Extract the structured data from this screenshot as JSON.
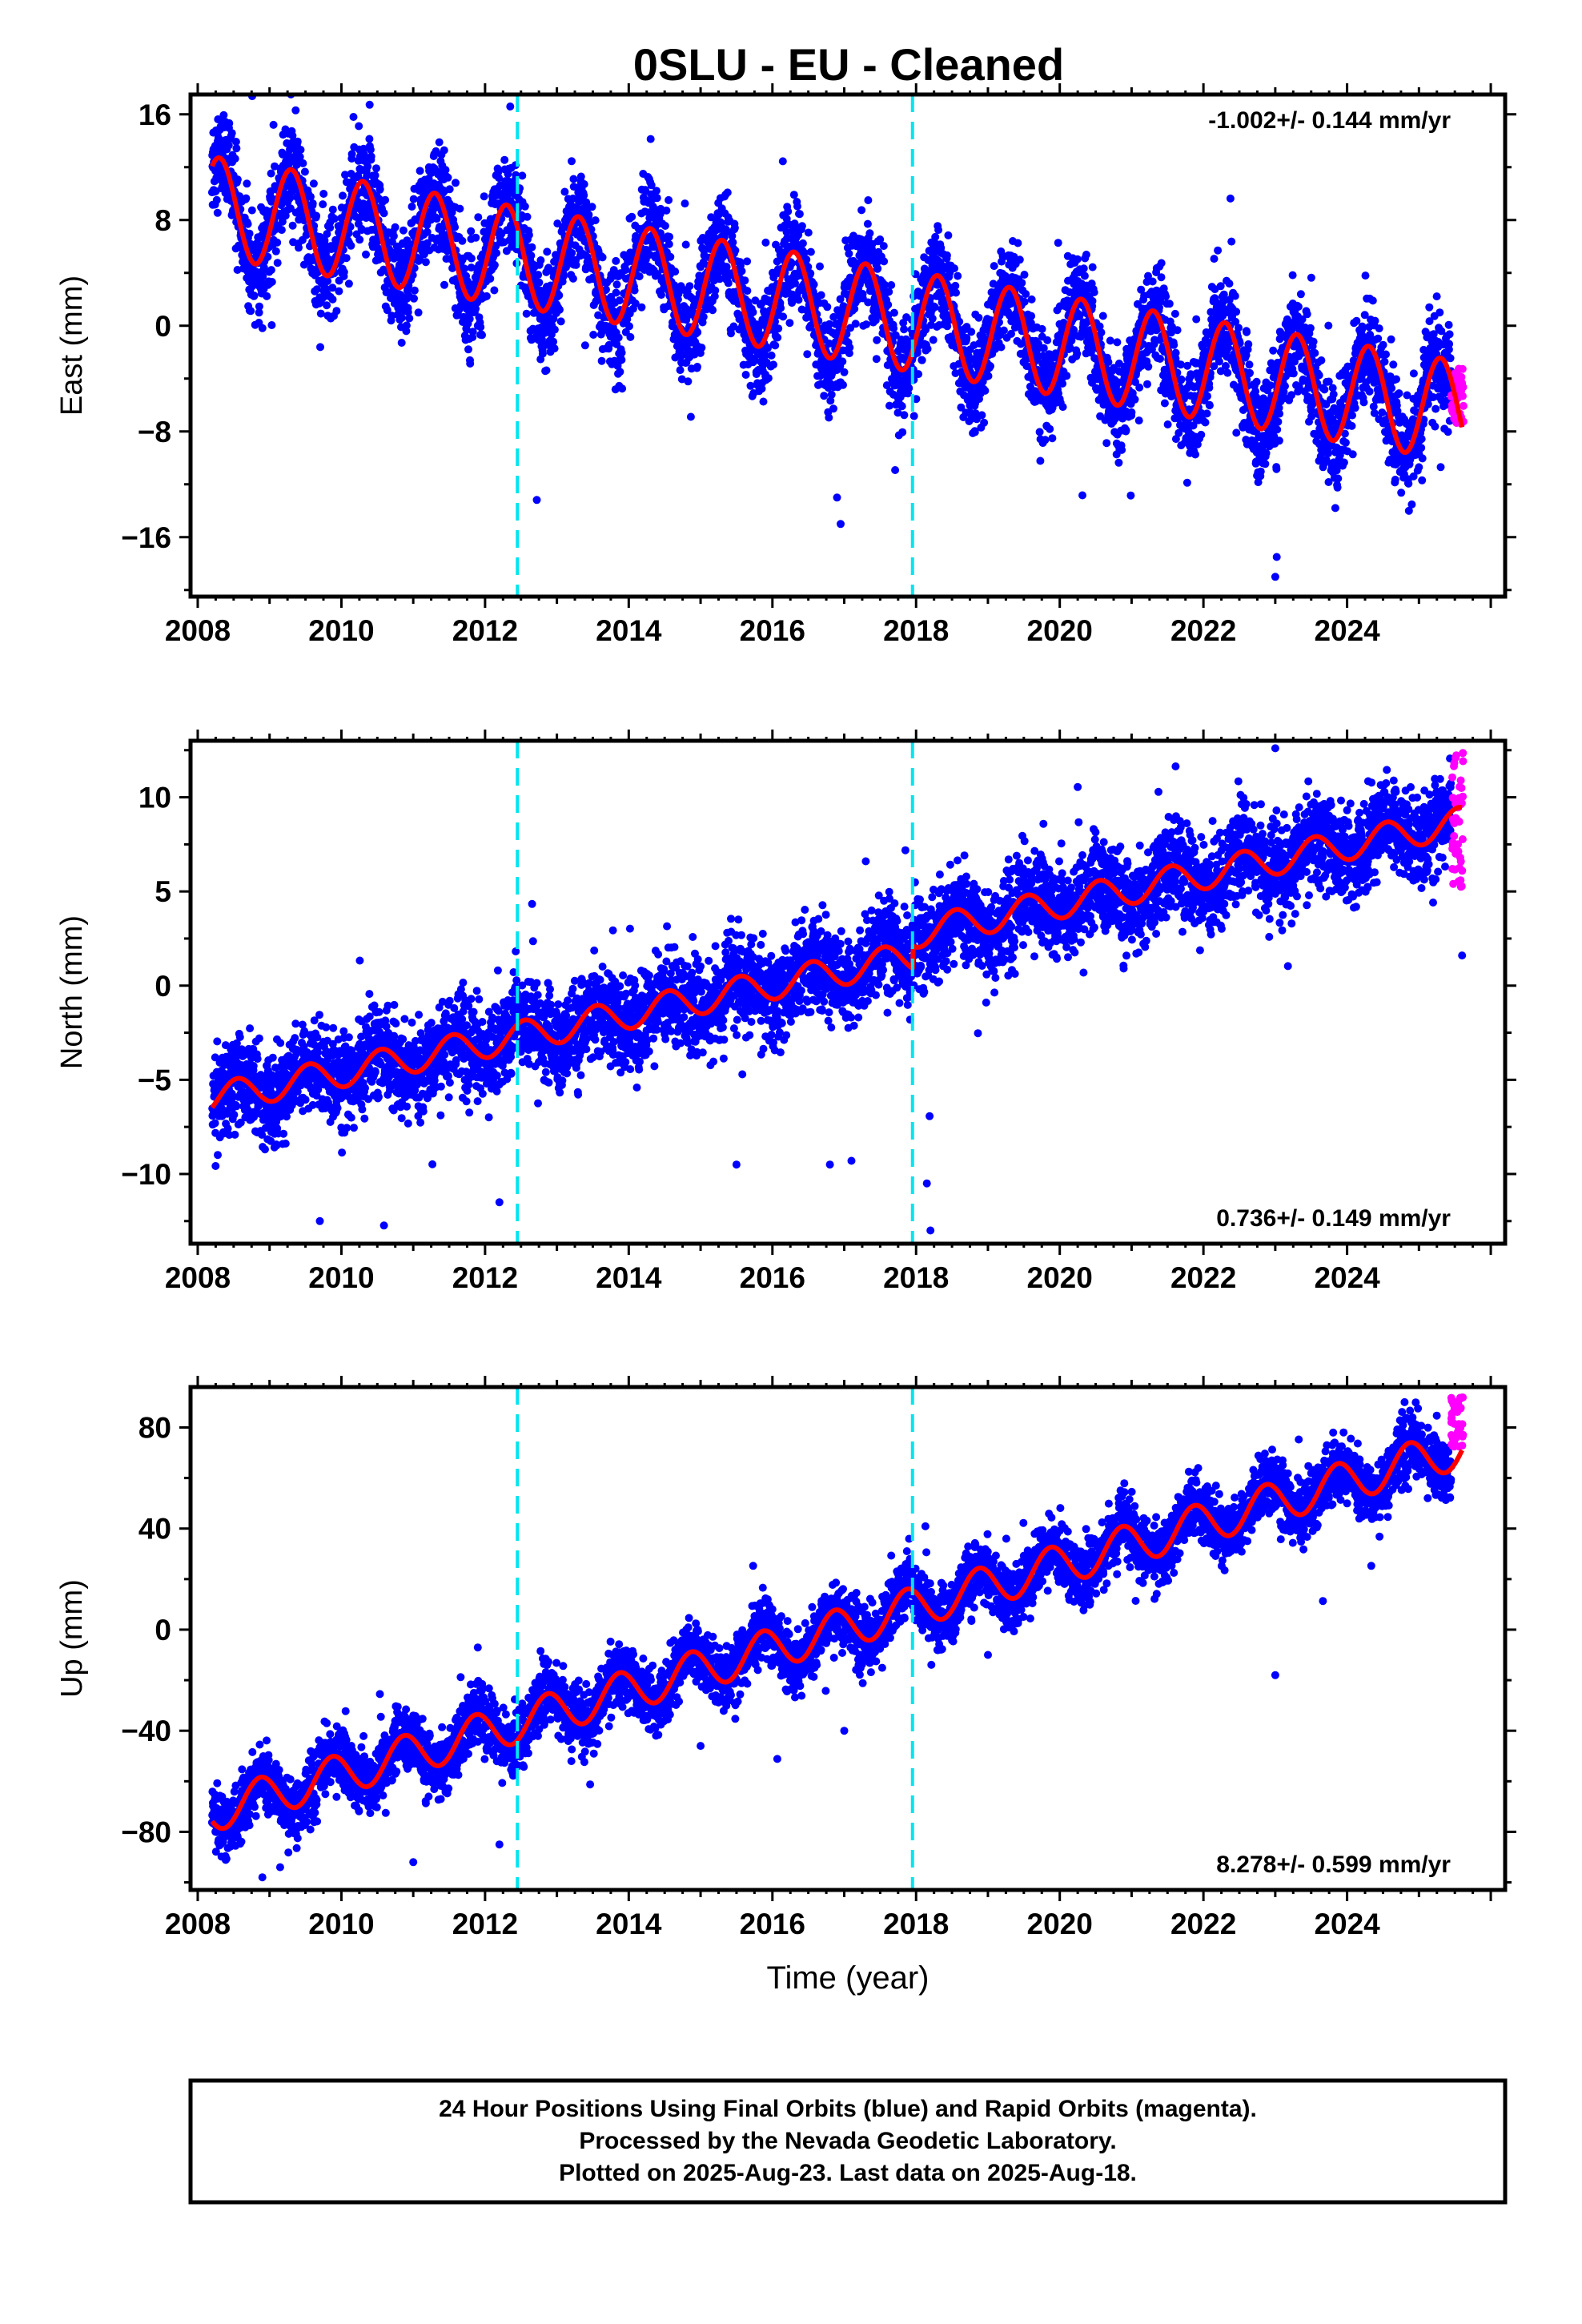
{
  "title": "0SLU  - EU - Cleaned",
  "footer": {
    "lines": [
      "24 Hour Positions Using Final Orbits (blue) and Rapid Orbits (magenta).",
      "Processed by the Nevada Geodetic Laboratory.",
      "Plotted on 2025-Aug-23. Last data on 2025-Aug-18."
    ]
  },
  "colors": {
    "final_orbits": "#0000ff",
    "rapid_orbits": "#ff00ff",
    "model_fit": "#ff0000",
    "steps": "#00e5ee"
  },
  "chart_data": [
    {
      "type": "scatter",
      "component": "east",
      "ylabel": "East (mm)",
      "xlabel": "",
      "xlim": [
        2007.9,
        2026.2
      ],
      "ylim": [
        -20.5,
        17.5
      ],
      "xticks": [
        2008,
        2010,
        2012,
        2014,
        2016,
        2018,
        2020,
        2022,
        2024
      ],
      "yticks": [
        -16,
        -8,
        0,
        8,
        16
      ],
      "yticklabels": [
        "−16",
        "−8",
        "0",
        "8",
        "16"
      ],
      "rate_label": "-1.002+/- 0.144 mm/yr",
      "rate_position": "top-right",
      "step_epochs": [
        2012.45,
        2017.95
      ],
      "model": {
        "trend_start": 2008.2,
        "trend_end": 2025.6,
        "value_start": 9,
        "value_end": -6.5,
        "annual_amplitude": 3.8,
        "annual_phase": 0.05,
        "jitter": 1.9,
        "step_at": 2017.95,
        "step_size": 0
      },
      "rapid_points": {
        "x_range": [
          2025.45,
          2025.62
        ],
        "y_range": [
          -7.5,
          -3
        ]
      },
      "outliers": [
        [
          2023.0,
          -19
        ],
        [
          2023.02,
          -17.5
        ],
        [
          2016.95,
          -15
        ],
        [
          2016.9,
          -13
        ],
        [
          2022.2,
          5.7
        ],
        [
          2014.2,
          11.5
        ],
        [
          2011.45,
          11.8
        ]
      ]
    },
    {
      "type": "scatter",
      "component": "north",
      "ylabel": "North (mm)",
      "xlabel": "",
      "xlim": [
        2007.9,
        2026.2
      ],
      "ylim": [
        -13.7,
        13.0
      ],
      "xticks": [
        2008,
        2010,
        2012,
        2014,
        2016,
        2018,
        2020,
        2022,
        2024
      ],
      "yticks": [
        -10,
        -5,
        0,
        5,
        10
      ],
      "yticklabels": [
        "−10",
        "−5",
        "0",
        "5",
        "10"
      ],
      "rate_label": "0.736+/- 0.149 mm/yr",
      "rate_position": "bottom-right",
      "step_epochs": [
        2012.45,
        2017.95
      ],
      "model": {
        "trend_start": 2008.2,
        "trend_end": 2025.6,
        "value_start": -6,
        "value_end": 7.5,
        "annual_amplitude": 0.8,
        "annual_phase": 0.3,
        "jitter": 1.2,
        "step_at": 2017.95,
        "step_size": 1.2
      },
      "rapid_points": {
        "x_range": [
          2025.45,
          2025.62
        ],
        "y_range": [
          5,
          12.5
        ]
      },
      "outliers": [
        [
          2009.7,
          -12.5
        ],
        [
          2018.2,
          -13
        ],
        [
          2018.15,
          -10.5
        ],
        [
          2016.8,
          -9.5
        ],
        [
          2017.1,
          -9.3
        ],
        [
          2015.5,
          -9.5
        ],
        [
          2012.2,
          -11.5
        ],
        [
          2023.0,
          12.6
        ],
        [
          2025.6,
          1.6
        ],
        [
          2017.3,
          6.6
        ]
      ]
    },
    {
      "type": "scatter",
      "component": "up",
      "ylabel": "Up (mm)",
      "xlabel": "Time (year)",
      "xlim": [
        2007.9,
        2026.2
      ],
      "ylim": [
        -103,
        96
      ],
      "xticks": [
        2008,
        2010,
        2012,
        2014,
        2016,
        2018,
        2020,
        2022,
        2024
      ],
      "yticks": [
        -80,
        -40,
        0,
        40,
        80
      ],
      "yticklabels": [
        "−80",
        "−40",
        "0",
        "40",
        "80"
      ],
      "rate_label": "8.278+/- 0.599 mm/yr",
      "rate_position": "bottom-right",
      "step_epochs": [
        2012.45,
        2017.95
      ],
      "model": {
        "trend_start": 2008.2,
        "trend_end": 2025.6,
        "value_start": -72,
        "value_end": 72,
        "annual_amplitude": 8,
        "annual_phase": 0.62,
        "jitter": 6,
        "step_at": 2017.95,
        "step_size": 0
      },
      "rapid_points": {
        "x_range": [
          2025.45,
          2025.62
        ],
        "y_range": [
          72,
          92
        ]
      },
      "outliers": [
        [
          2008.9,
          -98
        ],
        [
          2011.0,
          -92
        ],
        [
          2012.2,
          -85
        ],
        [
          2017.0,
          -40
        ],
        [
          2015.0,
          -46
        ],
        [
          2019.0,
          -10
        ],
        [
          2023.0,
          -18
        ],
        [
          2024.8,
          90
        ]
      ]
    }
  ]
}
